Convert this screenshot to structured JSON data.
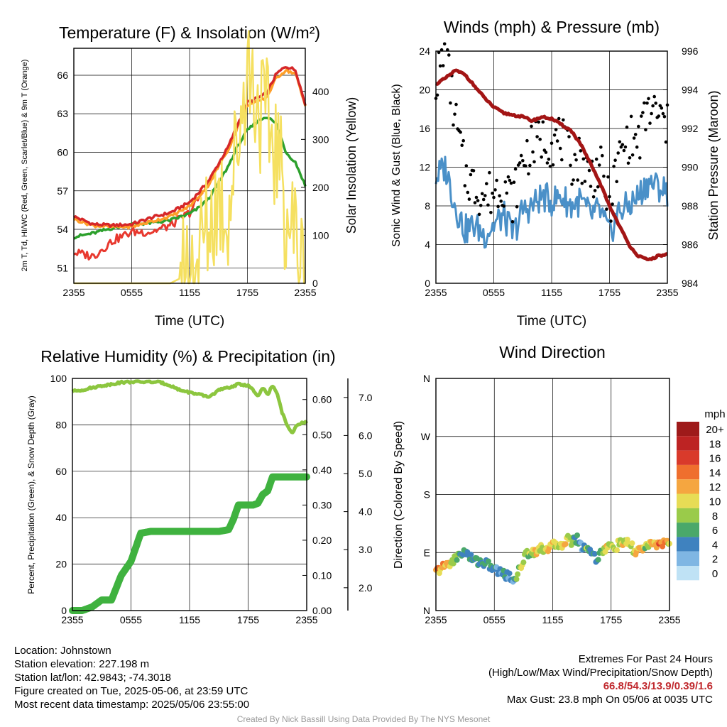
{
  "colors": {
    "t2m": "#d62728",
    "td": "#2ca02c",
    "hiwc": "#e8392f",
    "t9m": "#ff9f29",
    "solar": "#f5e060",
    "wind": "#4a90c8",
    "gust": "#000000",
    "pressure": "#a31515",
    "rh": "#8cc63f",
    "precip": "#3fb23f",
    "snow": "#999999"
  },
  "panels": {
    "temp": {
      "title": "Temperature (F) & Insolation (W/m²)",
      "left_label": "2m T, Td, HI/WC (Red, Green, Scarlet/Blue) & 9m T (Orange)",
      "right_label": "Solar Insolation (Yellow)",
      "xlabel": "Time (UTC)"
    },
    "wind": {
      "title": "Winds (mph) & Pressure (mb)",
      "left_label": "Sonic Wind & Gust (Blue, Black)",
      "right_label": "Station Pressure (Maroon)",
      "xlabel": "Time (UTC)"
    },
    "rh": {
      "title": "Relative Humidity (%) & Precipitation (in)",
      "left_label": "Percent, Precipitation (Green), & Snow Depth (Gray)"
    },
    "dir": {
      "title": "Wind Direction",
      "left_label": "Direction (Colored By Speed)",
      "legend_title": "mph",
      "legend_labels": [
        "20+",
        "18",
        "16",
        "14",
        "12",
        "10",
        "8",
        "6",
        "4",
        "2",
        "0"
      ],
      "legend_colors": [
        "#9e1a1a",
        "#bd2323",
        "#d93a2b",
        "#ef6f2e",
        "#f5a640",
        "#e7dc55",
        "#9acb4a",
        "#4aa86a",
        "#3f82bf",
        "#7fb6e3",
        "#bfe2f5"
      ]
    }
  },
  "chart_data": [
    {
      "type": "line",
      "title": "Temperature (F) & Insolation (W/m²)",
      "xlabel": "Time (UTC)",
      "ylabel": "2m T, Td, HI/WC (Red, Green, Scarlet/Blue) & 9m T (Orange)",
      "y2label": "Solar Insolation (Yellow)",
      "x_ticks": [
        "2355",
        "0555",
        "1155",
        "1755",
        "2355"
      ],
      "y_ticks": [
        51,
        54,
        57,
        60,
        63,
        66
      ],
      "y2_ticks": [
        0,
        100,
        200,
        300,
        400
      ],
      "ylim": [
        49.8,
        68.1
      ],
      "y2lim": [
        0,
        490
      ],
      "x_hours": [
        0,
        2,
        4,
        6,
        8,
        10,
        12,
        13,
        14,
        15,
        16,
        17,
        18,
        19,
        20,
        21,
        22,
        23,
        24
      ],
      "series": [
        {
          "name": "2m T",
          "values": [
            55.0,
            54.4,
            54.3,
            54.4,
            54.9,
            55.3,
            56.1,
            56.9,
            57.8,
            59.1,
            60.4,
            62.2,
            63.9,
            64.2,
            64.6,
            66.1,
            66.7,
            66.4,
            63.7
          ]
        },
        {
          "name": "Td",
          "values": [
            53.4,
            53.7,
            54.1,
            54.4,
            54.5,
            54.7,
            55.2,
            55.7,
            56.4,
            57.6,
            58.9,
            60.5,
            61.7,
            62.4,
            62.8,
            62.2,
            60.0,
            59.2,
            57.4
          ]
        },
        {
          "name": "HI/WC",
          "values": [
            52.2,
            51.9,
            53.1,
            53.8,
            53.8,
            54.3,
            55.3,
            56.5,
            57.3,
            58.9,
            60.2,
            62.0,
            63.7,
            64.0,
            64.5,
            65.9,
            66.5,
            66.2,
            63.5
          ]
        },
        {
          "name": "9m T",
          "values": [
            54.8,
            54.3,
            54.2,
            54.2,
            54.6,
            55.0,
            55.8,
            56.6,
            57.5,
            58.9,
            60.2,
            62.0,
            63.7,
            63.9,
            64.3,
            65.8,
            66.4,
            66.1,
            63.6
          ]
        },
        {
          "name": "Solar Insolation",
          "axis": "right",
          "values": [
            0,
            0,
            0,
            0,
            0,
            0,
            20,
            60,
            120,
            180,
            150,
            300,
            460,
            380,
            330,
            280,
            150,
            100,
            0
          ]
        }
      ]
    },
    {
      "type": "line",
      "title": "Winds (mph) & Pressure (mb)",
      "xlabel": "Time (UTC)",
      "ylabel": "Sonic Wind & Gust (Blue, Black)",
      "y2label": "Station Pressure (Maroon)",
      "x_ticks": [
        "2355",
        "0555",
        "1155",
        "1755",
        "2355"
      ],
      "y_ticks": [
        0,
        4,
        8,
        12,
        16,
        20,
        24
      ],
      "y2_ticks": [
        984,
        986,
        988,
        990,
        992,
        994,
        996
      ],
      "ylim": [
        0,
        24
      ],
      "y2lim": [
        984,
        996
      ],
      "x_hours": [
        0,
        1,
        2,
        3,
        4,
        5,
        6,
        7,
        8,
        9,
        10,
        11,
        12,
        13,
        14,
        15,
        16,
        17,
        18,
        19,
        20,
        21,
        22,
        23,
        24
      ],
      "series": [
        {
          "name": "Sonic Wind",
          "values": [
            11.0,
            12.0,
            8.0,
            5.5,
            6.0,
            5.0,
            6.0,
            7.0,
            5.0,
            7.5,
            8.0,
            9.0,
            8.5,
            9.0,
            8.0,
            8.5,
            7.0,
            7.5,
            5.0,
            7.5,
            8.0,
            9.0,
            10.5,
            10.0,
            9.5
          ]
        },
        {
          "name": "Gust",
          "values": [
            21.0,
            23.8,
            17.0,
            11.5,
            10.0,
            9.0,
            9.5,
            10.5,
            8.5,
            13.0,
            14.0,
            15.0,
            14.5,
            15.0,
            12.5,
            13.0,
            11.0,
            12.0,
            8.0,
            13.0,
            15.0,
            14.5,
            18.0,
            17.5,
            16.0
          ]
        },
        {
          "name": "Station Pressure",
          "axis": "right",
          "values": [
            994.3,
            994.6,
            995.0,
            994.8,
            994.2,
            993.6,
            993.1,
            992.8,
            992.7,
            992.6,
            992.4,
            992.6,
            992.5,
            992.2,
            991.9,
            991.2,
            990.2,
            989.2,
            988.0,
            987.0,
            986.0,
            985.4,
            985.2,
            985.4,
            985.5
          ]
        }
      ]
    },
    {
      "type": "line",
      "title": "Relative Humidity (%) & Precipitation (in)",
      "ylabel": "Percent, Precipitation (Green), & Snow Depth (Gray)",
      "x_ticks": [
        "2355",
        "0555",
        "1155",
        "1755",
        "2355"
      ],
      "y_ticks": [
        0,
        20,
        40,
        60,
        80,
        100
      ],
      "y2_ticks": [
        "0.00",
        "0.10",
        "0.20",
        "0.30",
        "0.40",
        "0.50",
        "0.60"
      ],
      "y3_ticks": [
        "2.0",
        "3.0",
        "4.0",
        "5.0",
        "6.0",
        "7.0"
      ],
      "ylim": [
        0,
        100
      ],
      "y2lim": [
        0,
        0.66
      ],
      "series": [
        {
          "name": "Relative Humidity",
          "x_hours": [
            0,
            1,
            2,
            3,
            4,
            5,
            6,
            7,
            8,
            9,
            10,
            11,
            12,
            13,
            14,
            15,
            16,
            17,
            18,
            18.5,
            19,
            19.5,
            20,
            20.5,
            21,
            21.5,
            22,
            22.5,
            23,
            23.5,
            24
          ],
          "values": [
            94.5,
            95.0,
            96.0,
            96.8,
            97.5,
            98.3,
            98.5,
            98.5,
            98.5,
            98.3,
            97.0,
            95.0,
            94.0,
            93.0,
            92.0,
            95.0,
            96.0,
            97.5,
            97.0,
            95.0,
            92.0,
            96.0,
            93.0,
            97.0,
            93.0,
            85.0,
            80.0,
            76.0,
            80.0,
            81.0,
            81.0
          ]
        },
        {
          "name": "Precipitation",
          "axis": "right",
          "x_hours": [
            0,
            1,
            2,
            3,
            4,
            5,
            6,
            7,
            8,
            9,
            10,
            11,
            12,
            13,
            14,
            15,
            16,
            16.5,
            17,
            17.5,
            18,
            18.5,
            19,
            19.5,
            20,
            20.5,
            21,
            22,
            23,
            24
          ],
          "values": [
            0.0,
            0.0,
            0.01,
            0.03,
            0.03,
            0.1,
            0.14,
            0.22,
            0.225,
            0.225,
            0.225,
            0.225,
            0.225,
            0.225,
            0.225,
            0.225,
            0.23,
            0.26,
            0.3,
            0.3,
            0.3,
            0.3,
            0.305,
            0.33,
            0.34,
            0.38,
            0.38,
            0.38,
            0.38,
            0.38
          ]
        }
      ]
    },
    {
      "type": "scatter",
      "title": "Wind Direction",
      "ylabel": "Direction (Colored By Speed)",
      "x_ticks": [
        "2355",
        "0555",
        "1155",
        "1755",
        "2355"
      ],
      "y_ticks": [
        "N",
        "E",
        "S",
        "W",
        "N"
      ],
      "ylim": [
        0,
        360
      ],
      "legend": {
        "title": "mph",
        "labels": [
          "20+",
          "18",
          "16",
          "14",
          "12",
          "10",
          "8",
          "6",
          "4",
          "2",
          "0"
        ]
      },
      "x_hours": [
        0.0,
        0.5,
        1.0,
        1.5,
        2.0,
        2.5,
        3.0,
        3.5,
        4.0,
        4.5,
        5.0,
        5.5,
        6.0,
        6.5,
        7.0,
        7.5,
        8.0,
        8.5,
        9.0,
        9.5,
        10.0,
        10.5,
        11.0,
        11.5,
        12.0,
        12.5,
        13.0,
        13.5,
        14.0,
        14.5,
        15.0,
        15.5,
        16.0,
        16.5,
        17.0,
        17.5,
        18.0,
        18.5,
        19.0,
        19.5,
        20.0,
        20.5,
        21.0,
        21.5,
        22.0,
        22.5,
        23.0,
        23.5,
        24.0
      ],
      "direction_deg": [
        60,
        65,
        70,
        75,
        80,
        88,
        92,
        82,
        78,
        76,
        74,
        70,
        64,
        60,
        58,
        52,
        48,
        60,
        80,
        90,
        92,
        94,
        96,
        98,
        100,
        102,
        104,
        110,
        108,
        112,
        98,
        100,
        90,
        80,
        92,
        96,
        100,
        98,
        106,
        104,
        102,
        90,
        95,
        100,
        100,
        102,
        106,
        104,
        104
      ],
      "speed_mph": [
        14,
        12,
        12,
        10,
        8,
        5,
        4,
        5,
        5,
        6,
        5,
        4,
        5,
        4,
        4,
        3,
        4,
        8,
        10,
        8,
        10,
        10,
        8,
        12,
        10,
        8,
        10,
        9,
        8,
        5,
        4,
        8,
        4,
        4,
        8,
        10,
        8,
        9,
        10,
        10,
        8,
        10,
        12,
        8,
        10,
        12,
        14,
        12,
        10
      ]
    }
  ],
  "info": {
    "location": "Location: Johnstown",
    "elevation": "Station elevation: 227.198 m",
    "latlon": "Station lat/lon: 42.9843; -74.3018",
    "created": "Figure created on Tue, 2025-05-06, at 23:59 UTC",
    "recent": "Most recent data timestamp: 2025/05/06 23:55:00"
  },
  "extremes": {
    "title": "Extremes For Past 24 Hours",
    "subtitle": "(High/Low/Max Wind/Precipitation/Snow Depth)",
    "values": "66.8/54.3/13.9/0.39/1.6",
    "gust": "Max Gust: 23.8 mph On 05/06 at 0035 UTC"
  },
  "credit": "Created By Nick Bassill Using Data Provided By The NYS Mesonet"
}
